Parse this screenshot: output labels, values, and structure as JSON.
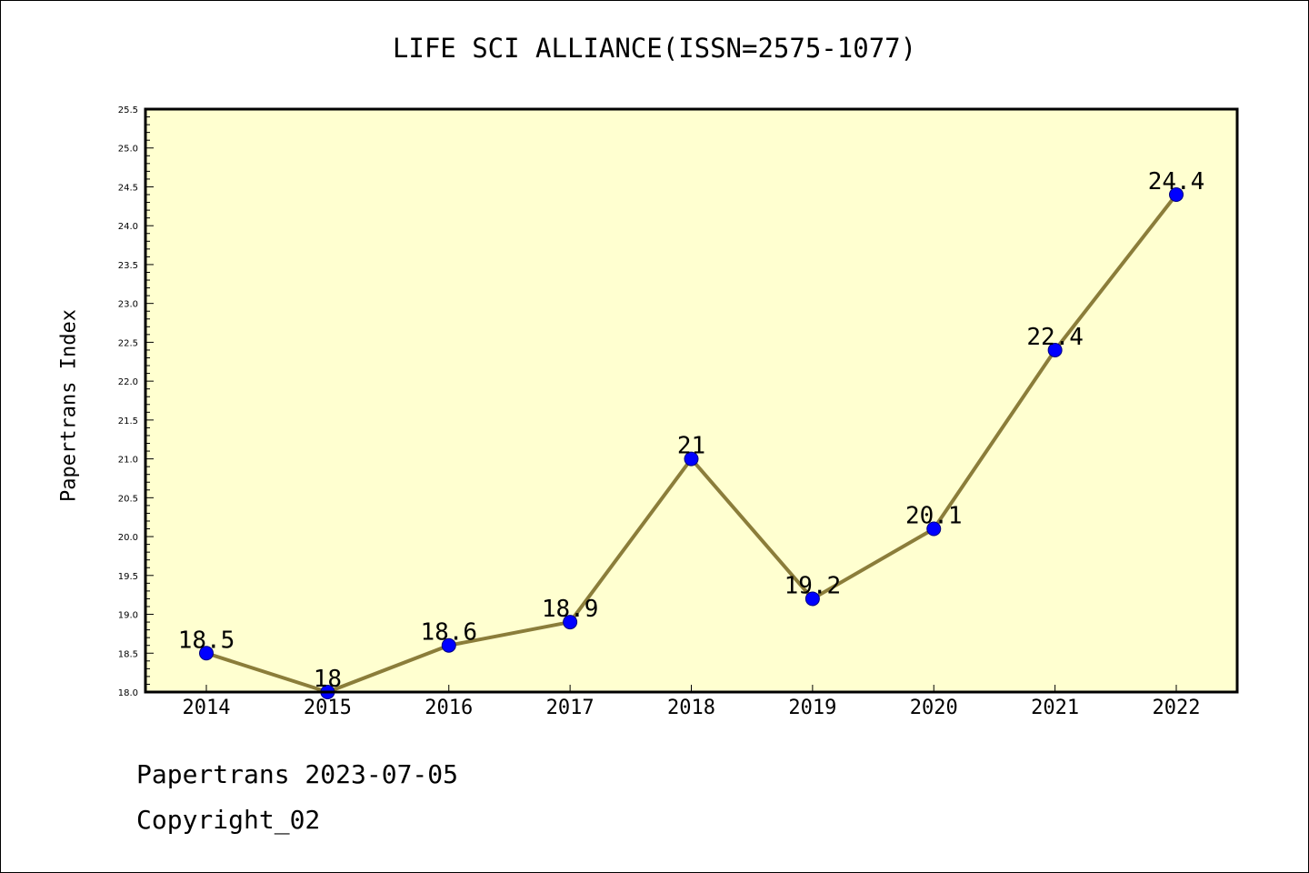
{
  "colors": {
    "plot_background": "#ffffd0",
    "line": "#8b7d3a",
    "marker": "#0000ff",
    "marker_edge": "#000080",
    "frame": "#000000"
  },
  "chart_data": {
    "type": "line",
    "title": "LIFE SCI ALLIANCE(ISSN=2575-1077)",
    "xlabel": "",
    "ylabel": "Papertrans Index",
    "categories": [
      "2014",
      "2015",
      "2016",
      "2017",
      "2018",
      "2019",
      "2020",
      "2021",
      "2022"
    ],
    "series": [
      {
        "values": [
          18.5,
          18,
          18.6,
          18.9,
          21,
          19.2,
          20.1,
          22.4,
          24.4
        ]
      }
    ],
    "data_labels": [
      "18.5",
      "18",
      "18.6",
      "18.9",
      "21",
      "19.2",
      "20.1",
      "22.4",
      "24.4"
    ],
    "ylim": [
      18.0,
      25.5
    ],
    "yticks": [
      "18.0",
      "18.5",
      "19.0",
      "19.5",
      "20.0",
      "20.5",
      "21.0",
      "21.5",
      "22.0",
      "22.5",
      "23.0",
      "23.5",
      "24.0",
      "24.5",
      "25.0",
      "25.5"
    ],
    "grid": false,
    "legend": "none"
  },
  "footer": {
    "line1": "Papertrans 2023-07-05",
    "line2": "Copyright_02"
  }
}
